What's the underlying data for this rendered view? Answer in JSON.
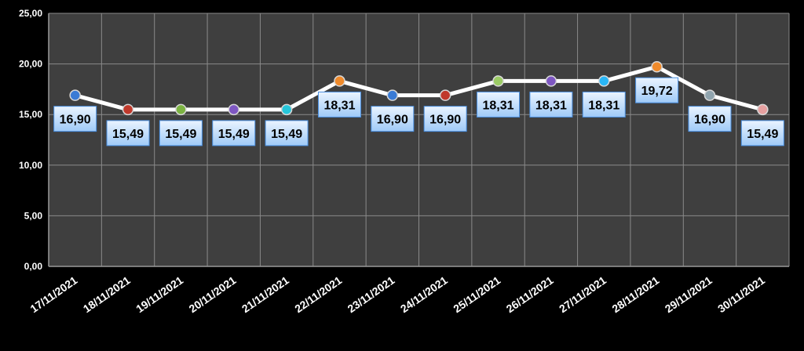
{
  "chart_data": {
    "type": "line",
    "categories": [
      "17/11/2021",
      "18/11/2021",
      "19/11/2021",
      "20/11/2021",
      "21/11/2021",
      "22/11/2021",
      "23/11/2021",
      "24/11/2021",
      "25/11/2021",
      "26/11/2021",
      "27/11/2021",
      "28/11/2021",
      "29/11/2021",
      "30/11/2021"
    ],
    "series": [
      {
        "values": [
          16.9,
          15.49,
          15.49,
          15.49,
          15.49,
          18.31,
          16.9,
          16.9,
          18.31,
          18.31,
          18.31,
          19.72,
          16.9,
          15.49
        ],
        "data_labels": [
          "16,90",
          "15,49",
          "15,49",
          "15,49",
          "15,49",
          "18,31",
          "16,90",
          "16,90",
          "18,31",
          "18,31",
          "18,31",
          "19,72",
          "16,90",
          "15,49"
        ],
        "marker_colors": [
          "#3a7bd5",
          "#c0392b",
          "#7cb342",
          "#7e57c2",
          "#26c6da",
          "#ef8a2b",
          "#3a7bd5",
          "#c0392b",
          "#9ccc65",
          "#7e57c2",
          "#29b6f6",
          "#ef8a2b",
          "#90a4ae",
          "#e6a0a0"
        ],
        "line_color": "#ffffff"
      }
    ],
    "y_ticks": [
      "0,00",
      "5,00",
      "10,00",
      "15,00",
      "20,00",
      "25,00"
    ],
    "ylim": [
      0,
      25
    ],
    "ytick_step": 5,
    "grid": true,
    "plot_background": "#3f3f3f",
    "gridline_color": "#8a8a8a",
    "label_box_color": "#cfe6ff",
    "label_box_border": "#4a90e2"
  }
}
